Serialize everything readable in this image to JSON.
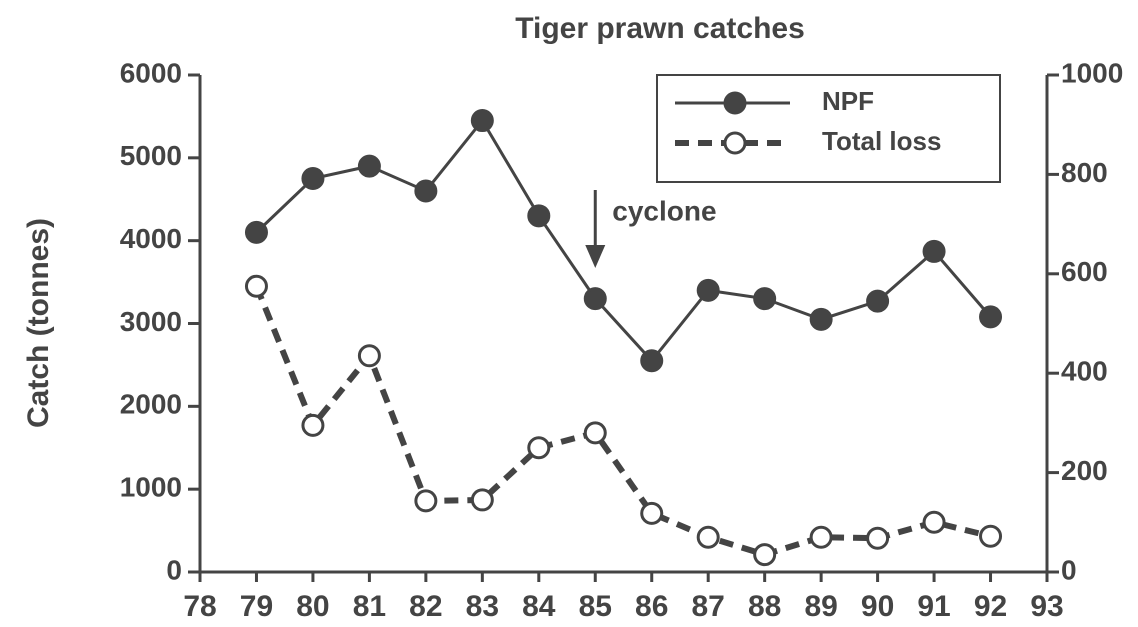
{
  "chart_data": {
    "type": "line",
    "title": "Tiger prawn catches",
    "y_label": "Catch (tonnes)",
    "x": [
      79,
      80,
      81,
      82,
      83,
      84,
      85,
      86,
      87,
      88,
      89,
      90,
      91,
      92
    ],
    "xlim": [
      78,
      93
    ],
    "xticks": [
      78,
      79,
      80,
      81,
      82,
      83,
      84,
      85,
      86,
      87,
      88,
      89,
      90,
      91,
      92,
      93
    ],
    "ylim": [
      0,
      6000
    ],
    "yticks": [
      0,
      1000,
      2000,
      3000,
      4000,
      5000,
      6000
    ],
    "y2lim": [
      0,
      1000
    ],
    "y2ticks": [
      0,
      200,
      400,
      600,
      800,
      1000
    ],
    "legend": "upper right",
    "series": [
      {
        "name": "NPF",
        "color": "#444444",
        "linestyle": "solid",
        "marker": "filled-circle",
        "values": [
          4100,
          4750,
          4900,
          4600,
          5450,
          4300,
          3300,
          2550,
          3400,
          3300,
          3050,
          3270,
          3870,
          3080
        ]
      },
      {
        "name": "Total loss",
        "color": "#444444",
        "linestyle": "dashed",
        "marker": "open-circle",
        "axis": "y2",
        "values": [
          575,
          295,
          435,
          143,
          145,
          250,
          280,
          118,
          70,
          35,
          70,
          68,
          100,
          72
        ]
      }
    ],
    "annotations": [
      {
        "text": "cyclone",
        "x": 85
      }
    ]
  }
}
